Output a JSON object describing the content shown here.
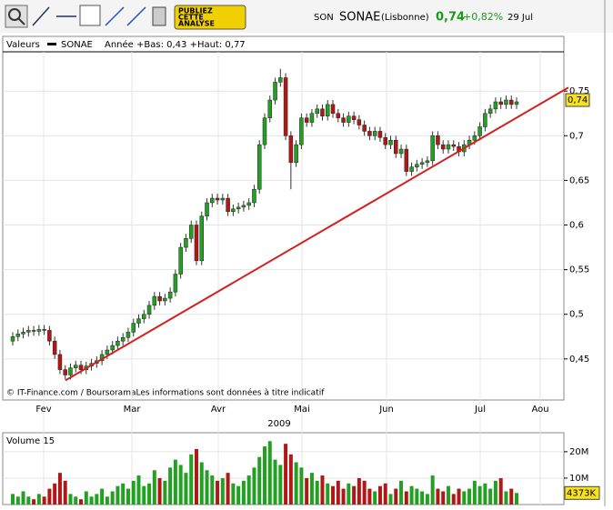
{
  "header": {
    "symbol": "SON",
    "name": "SONAE",
    "market": "(Lisbonne)",
    "price": "0,74",
    "change": "+0,82%",
    "date": "29 Jul",
    "banner": [
      "PUBLIEZ",
      "CETTE",
      "ANALYSE"
    ]
  },
  "legend": {
    "title": "Valeurs",
    "series": "SONAE",
    "range": "Année +Bas: 0,43 +Haut: 0,77"
  },
  "copyright": "© IT-Finance.com / BoursoramaLes informations sont données à titre indicatif",
  "chart_data": [
    {
      "type": "candlestick",
      "categories": [
        "Fev",
        "Mar",
        "Avr",
        "Mai",
        "Jun",
        "Jul",
        "Aou"
      ],
      "year": "2009",
      "open": [
        0.47,
        0.475,
        0.478,
        0.48,
        0.482,
        0.481,
        0.483,
        0.482,
        0.47,
        0.455,
        0.438,
        0.432,
        0.44,
        0.443,
        0.438,
        0.442,
        0.445,
        0.448,
        0.455,
        0.46,
        0.465,
        0.47,
        0.474,
        0.48,
        0.49,
        0.495,
        0.5,
        0.51,
        0.52,
        0.515,
        0.518,
        0.525,
        0.545,
        0.575,
        0.585,
        0.6,
        0.56,
        0.61,
        0.625,
        0.63,
        0.628,
        0.63,
        0.615,
        0.618,
        0.62,
        0.622,
        0.625,
        0.64,
        0.69,
        0.72,
        0.74,
        0.76,
        0.765,
        0.7,
        0.67,
        0.69,
        0.72,
        0.715,
        0.725,
        0.73,
        0.722,
        0.735,
        0.725,
        0.72,
        0.715,
        0.722,
        0.718,
        0.712,
        0.705,
        0.7,
        0.705,
        0.698,
        0.69,
        0.695,
        0.68,
        0.685,
        0.66,
        0.665,
        0.668,
        0.67,
        0.672,
        0.7,
        0.69,
        0.685,
        0.69,
        0.688,
        0.682,
        0.69,
        0.695,
        0.7,
        0.71,
        0.725,
        0.73,
        0.738,
        0.735,
        0.74,
        0.735
      ],
      "high": [
        0.48,
        0.483,
        0.485,
        0.487,
        0.487,
        0.488,
        0.488,
        0.487,
        0.475,
        0.46,
        0.443,
        0.445,
        0.448,
        0.448,
        0.447,
        0.45,
        0.453,
        0.46,
        0.465,
        0.47,
        0.475,
        0.479,
        0.485,
        0.495,
        0.5,
        0.505,
        0.515,
        0.525,
        0.525,
        0.523,
        0.53,
        0.55,
        0.58,
        0.59,
        0.605,
        0.605,
        0.615,
        0.63,
        0.635,
        0.635,
        0.635,
        0.635,
        0.623,
        0.625,
        0.627,
        0.63,
        0.645,
        0.695,
        0.725,
        0.745,
        0.765,
        0.775,
        0.77,
        0.705,
        0.695,
        0.725,
        0.725,
        0.73,
        0.735,
        0.735,
        0.74,
        0.74,
        0.73,
        0.725,
        0.727,
        0.727,
        0.723,
        0.717,
        0.71,
        0.71,
        0.71,
        0.703,
        0.7,
        0.7,
        0.69,
        0.69,
        0.67,
        0.673,
        0.675,
        0.677,
        0.705,
        0.705,
        0.695,
        0.695,
        0.695,
        0.693,
        0.695,
        0.7,
        0.705,
        0.715,
        0.73,
        0.735,
        0.743,
        0.743,
        0.745,
        0.745,
        0.743
      ],
      "low": [
        0.465,
        0.47,
        0.473,
        0.475,
        0.476,
        0.476,
        0.477,
        0.465,
        0.45,
        0.433,
        0.427,
        0.427,
        0.435,
        0.433,
        0.433,
        0.437,
        0.44,
        0.443,
        0.45,
        0.455,
        0.46,
        0.465,
        0.469,
        0.475,
        0.485,
        0.49,
        0.495,
        0.505,
        0.51,
        0.51,
        0.513,
        0.52,
        0.54,
        0.57,
        0.58,
        0.555,
        0.555,
        0.605,
        0.62,
        0.623,
        0.623,
        0.61,
        0.61,
        0.613,
        0.615,
        0.617,
        0.62,
        0.635,
        0.685,
        0.715,
        0.735,
        0.755,
        0.695,
        0.64,
        0.665,
        0.685,
        0.71,
        0.71,
        0.72,
        0.717,
        0.717,
        0.72,
        0.715,
        0.71,
        0.71,
        0.713,
        0.707,
        0.7,
        0.695,
        0.695,
        0.693,
        0.685,
        0.685,
        0.675,
        0.675,
        0.655,
        0.655,
        0.66,
        0.663,
        0.665,
        0.667,
        0.685,
        0.68,
        0.68,
        0.683,
        0.677,
        0.677,
        0.685,
        0.69,
        0.695,
        0.705,
        0.72,
        0.725,
        0.73,
        0.73,
        0.73,
        0.73
      ],
      "close": [
        0.475,
        0.478,
        0.48,
        0.482,
        0.481,
        0.483,
        0.482,
        0.47,
        0.455,
        0.438,
        0.432,
        0.44,
        0.443,
        0.438,
        0.442,
        0.445,
        0.448,
        0.455,
        0.46,
        0.465,
        0.47,
        0.474,
        0.48,
        0.49,
        0.495,
        0.5,
        0.51,
        0.52,
        0.515,
        0.518,
        0.525,
        0.545,
        0.575,
        0.585,
        0.6,
        0.56,
        0.61,
        0.625,
        0.63,
        0.628,
        0.63,
        0.615,
        0.618,
        0.62,
        0.622,
        0.625,
        0.64,
        0.69,
        0.72,
        0.74,
        0.76,
        0.765,
        0.7,
        0.67,
        0.69,
        0.72,
        0.715,
        0.725,
        0.73,
        0.722,
        0.735,
        0.725,
        0.72,
        0.715,
        0.722,
        0.718,
        0.712,
        0.705,
        0.7,
        0.705,
        0.698,
        0.69,
        0.695,
        0.68,
        0.685,
        0.66,
        0.665,
        0.668,
        0.67,
        0.672,
        0.7,
        0.69,
        0.685,
        0.69,
        0.688,
        0.682,
        0.69,
        0.695,
        0.7,
        0.71,
        0.725,
        0.73,
        0.738,
        0.735,
        0.74,
        0.735,
        0.738
      ],
      "up_color": "#22a022",
      "down_color": "#b01818",
      "trendline": [
        0.426,
        0.754
      ],
      "trendline_color": "#d42020",
      "last": {
        "value": 0.74,
        "label": "0,74"
      },
      "ylim": [
        0.404,
        0.794
      ],
      "yticks": [
        {
          "value": 0.45,
          "label": "0,45"
        },
        {
          "value": 0.5,
          "label": "0,5"
        },
        {
          "value": 0.55,
          "label": "0,55"
        },
        {
          "value": 0.6,
          "label": "0,6"
        },
        {
          "value": 0.65,
          "label": "0,65"
        },
        {
          "value": 0.7,
          "label": "0,7"
        },
        {
          "value": 0.75,
          "label": "0,75"
        }
      ],
      "grid": true
    },
    {
      "type": "bar",
      "title": "Volume 15",
      "values": [
        4,
        3,
        5,
        3,
        2,
        4,
        3,
        6,
        8,
        12,
        9,
        4,
        3,
        2,
        5,
        3,
        4,
        6,
        3,
        5,
        7,
        8,
        6,
        9,
        11,
        7,
        8,
        13,
        10,
        9,
        14,
        17,
        15,
        12,
        19,
        21,
        16,
        13,
        11,
        9,
        10,
        12,
        8,
        7,
        9,
        11,
        14,
        18,
        22,
        24,
        17,
        15,
        23,
        19,
        16,
        14,
        10,
        12,
        9,
        11,
        8,
        7,
        9,
        6,
        8,
        7,
        10,
        9,
        6,
        5,
        7,
        8,
        4,
        6,
        9,
        5,
        7,
        6,
        5,
        4,
        11,
        6,
        5,
        7,
        4,
        6,
        5,
        6,
        9,
        7,
        8,
        6,
        9,
        10,
        5,
        6,
        4.373
      ],
      "last": {
        "value": 4.373,
        "label": "4373K"
      },
      "ylim": [
        0,
        26.5
      ],
      "yticks": [
        {
          "value": 10,
          "label": "10M"
        },
        {
          "value": 20,
          "label": "20M"
        }
      ],
      "grid": true
    }
  ]
}
